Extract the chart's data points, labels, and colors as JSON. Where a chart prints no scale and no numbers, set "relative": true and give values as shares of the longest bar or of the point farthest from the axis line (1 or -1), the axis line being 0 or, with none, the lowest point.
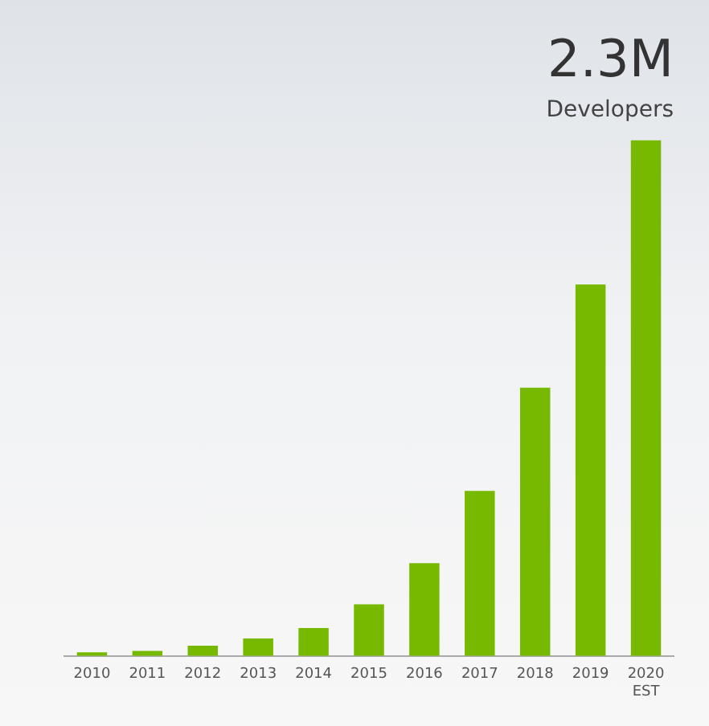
{
  "chart_data": {
    "type": "bar",
    "title": "2.3M",
    "subtitle": "Developers",
    "categories": [
      "2010",
      "2011",
      "2012",
      "2013",
      "2014",
      "2015",
      "2016",
      "2017",
      "2018",
      "2019",
      "2020 EST"
    ],
    "values": [
      0.007,
      0.01,
      0.02,
      0.034,
      0.054,
      0.1,
      0.18,
      0.32,
      0.52,
      0.72,
      1
    ],
    "color": "#76b900",
    "relative": true,
    "grid": false,
    "legend": false
  }
}
